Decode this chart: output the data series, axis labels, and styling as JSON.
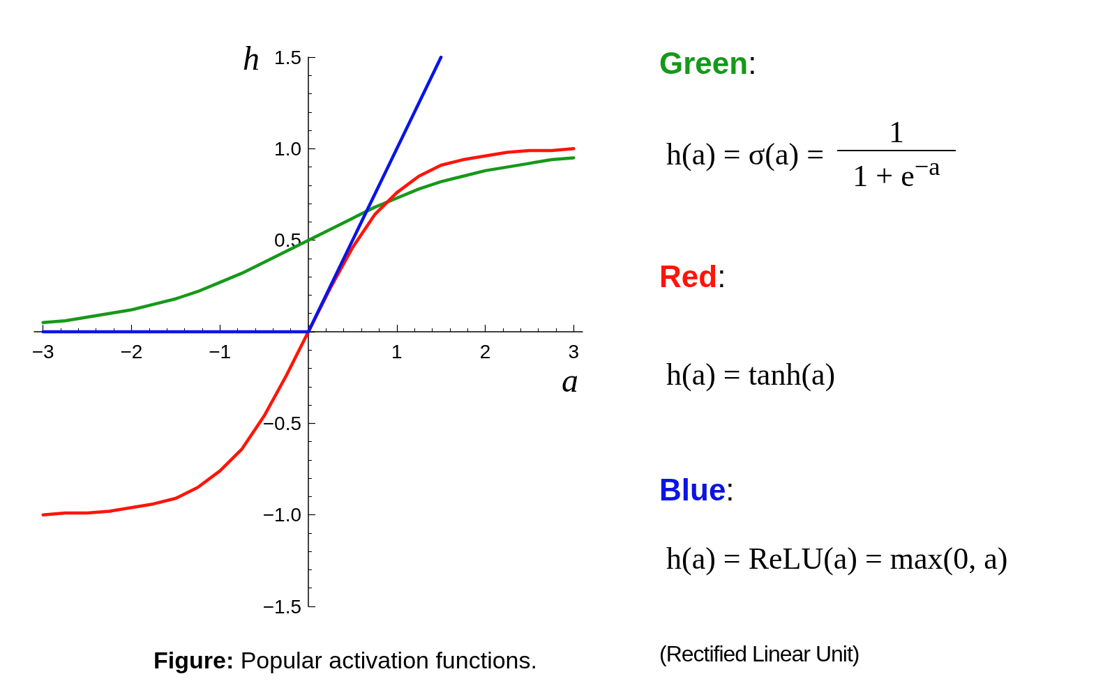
{
  "chart_data": {
    "type": "line",
    "xlabel": "a",
    "ylabel": "h",
    "x": [
      -3,
      -2.75,
      -2.5,
      -2.25,
      -2,
      -1.75,
      -1.5,
      -1.25,
      -1,
      -0.75,
      -0.5,
      -0.25,
      0,
      0.25,
      0.5,
      0.75,
      1,
      1.25,
      1.5,
      1.75,
      2,
      2.25,
      2.5,
      2.75,
      3
    ],
    "series": [
      {
        "color": "#16981a",
        "values": [
          0.05,
          0.06,
          0.08,
          0.1,
          0.12,
          0.15,
          0.18,
          0.22,
          0.27,
          0.32,
          0.38,
          0.44,
          0.5,
          0.56,
          0.62,
          0.68,
          0.73,
          0.78,
          0.82,
          0.85,
          0.88,
          0.9,
          0.92,
          0.94,
          0.95
        ]
      },
      {
        "color": "#ff1408",
        "values": [
          -1,
          -0.99,
          -0.99,
          -0.98,
          -0.96,
          -0.94,
          -0.91,
          -0.85,
          -0.76,
          -0.64,
          -0.46,
          -0.24,
          0,
          0.24,
          0.46,
          0.64,
          0.76,
          0.85,
          0.91,
          0.94,
          0.96,
          0.98,
          0.99,
          0.99,
          1
        ]
      },
      {
        "color": "#0a14e6",
        "x": [
          -3,
          0,
          1.5
        ],
        "values": [
          0,
          0,
          1.5
        ]
      }
    ],
    "xlim": [
      -3.1,
      3.1
    ],
    "xticks": [
      {
        "value": -3,
        "label": "−3"
      },
      {
        "value": -2,
        "label": "−2"
      },
      {
        "value": -1,
        "label": "−1"
      },
      {
        "value": 0,
        "label": null
      },
      1,
      2,
      3
    ],
    "ylim": [
      -1.5,
      1.5
    ],
    "yticks": [
      {
        "value": -1.5,
        "label": "−1.5"
      },
      {
        "value": -1,
        "label": "−1.0"
      },
      {
        "value": -0.5,
        "label": "−0.5"
      },
      {
        "value": 0,
        "label": null
      },
      0.5,
      {
        "value": 1,
        "label": "1.0"
      },
      1.5
    ],
    "marker": "none",
    "line_style": "solid",
    "annotations": [
      "Green:",
      "h(a) = σ(a) =",
      "1",
      "1 + e$^{−a}$",
      "Red:",
      "h(a) = tanh(a)",
      "Blue:",
      "h(a) = ReLU(a) = max(0, a)",
      "(Rectified Linear Unit)",
      "Figure: Popular activation functions."
    ]
  }
}
